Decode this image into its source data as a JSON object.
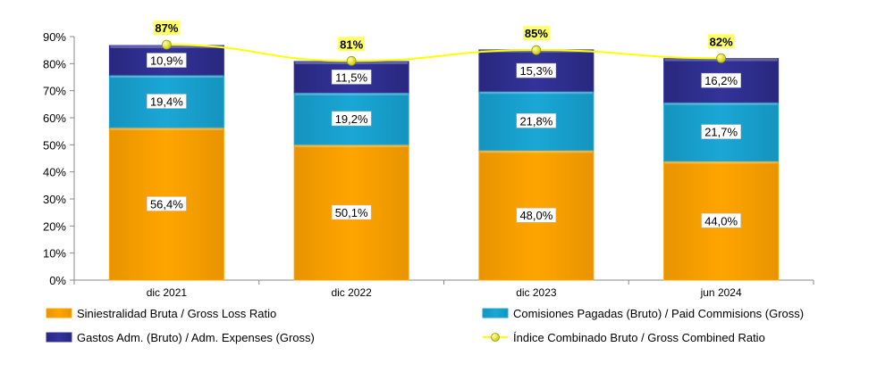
{
  "chart_data": {
    "type": "bar",
    "stacked": true,
    "categories": [
      "dic 2021",
      "dic 2022",
      "dic 2023",
      "jun 2024"
    ],
    "ylim": [
      0,
      90
    ],
    "yticks": [
      0,
      10,
      20,
      30,
      40,
      50,
      60,
      70,
      80,
      90
    ],
    "ytick_labels": [
      "0%",
      "10%",
      "20%",
      "30%",
      "40%",
      "50%",
      "60%",
      "70%",
      "80%",
      "90%"
    ],
    "series": [
      {
        "name": "Siniestralidad Bruta / Gross Loss Ratio",
        "kind": "bar",
        "color": "#FFA500",
        "values": [
          56.4,
          50.1,
          48.0,
          44.0
        ],
        "labels": [
          "56,4%",
          "50,1%",
          "48,0%",
          "44,0%"
        ]
      },
      {
        "name": "Comisiones Pagadas (Bruto) / Paid Commisions (Gross)",
        "kind": "bar",
        "color": "#1AA7D6",
        "values": [
          19.4,
          19.2,
          21.8,
          21.7
        ],
        "labels": [
          "19,4%",
          "19,2%",
          "21,8%",
          "21,7%"
        ]
      },
      {
        "name": "Gastos Adm. (Bruto) / Adm. Expenses (Gross)",
        "kind": "bar",
        "color": "#333399",
        "values": [
          10.9,
          11.5,
          15.3,
          16.2
        ],
        "labels": [
          "10,9%",
          "11,5%",
          "15,3%",
          "16,2%"
        ]
      },
      {
        "name": "Índice Combinado Bruto / Gross Combined Ratio",
        "kind": "line",
        "color": "#FFFF00",
        "values": [
          87,
          81,
          85,
          82
        ],
        "labels": [
          "87%",
          "81%",
          "85%",
          "82%"
        ]
      }
    ],
    "legend_position": "bottom",
    "grid": false
  }
}
